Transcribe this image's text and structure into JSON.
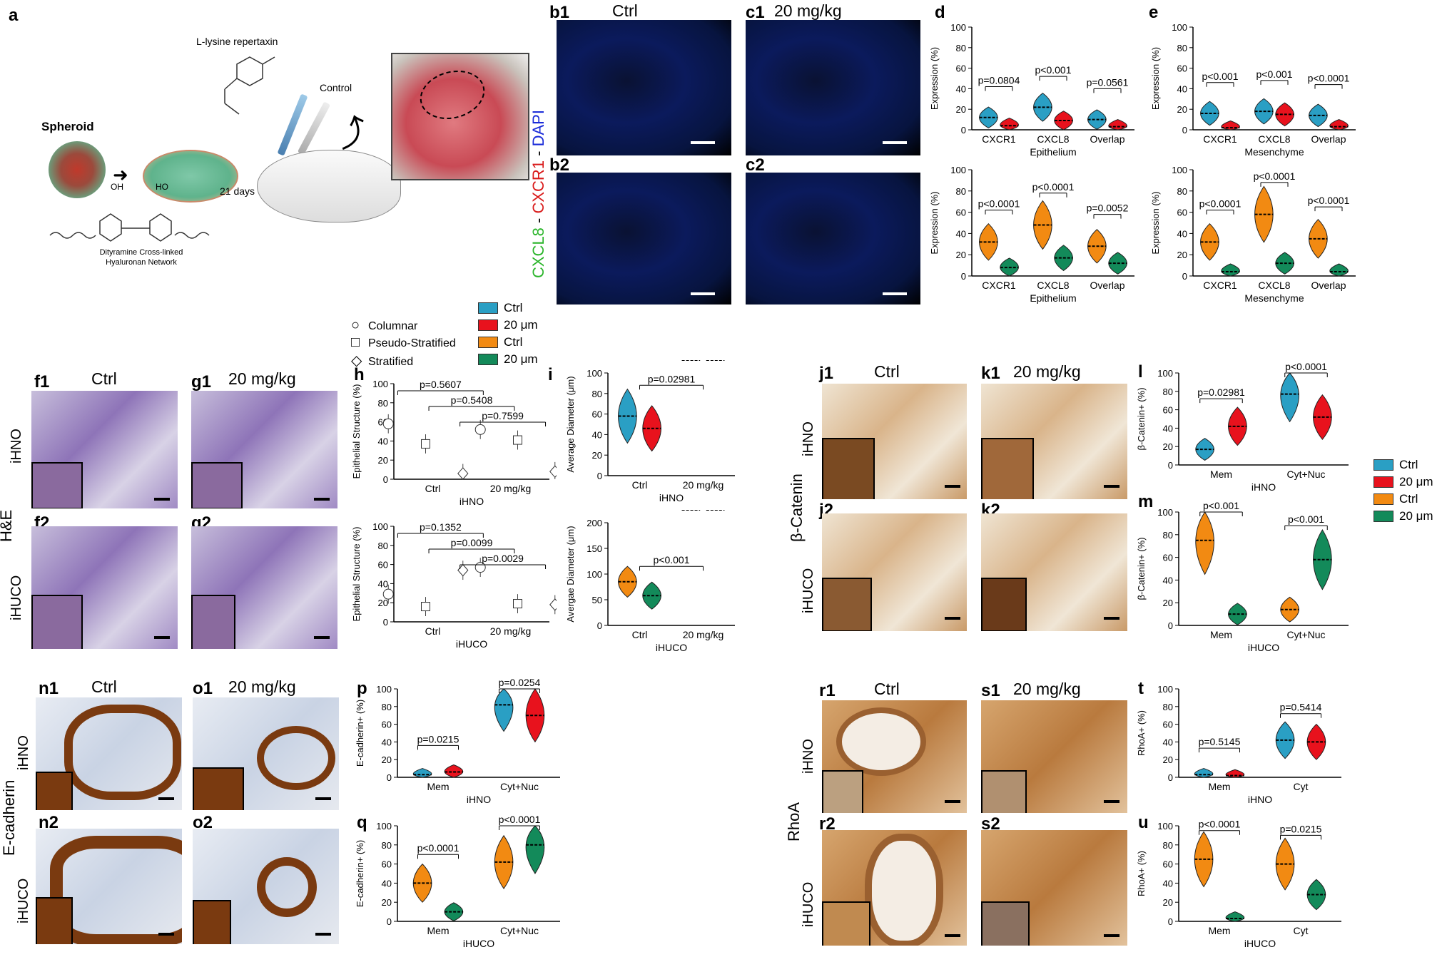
{
  "panel_labels": {
    "a": "a",
    "b1": "b1",
    "b2": "b2",
    "c1": "c1",
    "c2": "c2",
    "d": "d",
    "e": "e",
    "f1": "f1",
    "f2": "f2",
    "g1": "g1",
    "g2": "g2",
    "h": "h",
    "i": "i",
    "j1": "j1",
    "j2": "j2",
    "k1": "k1",
    "k2": "k2",
    "l": "l",
    "m": "m",
    "n1": "n1",
    "n2": "n2",
    "o1": "o1",
    "o2": "o2",
    "p": "p",
    "q": "q",
    "r1": "r1",
    "r2": "r2",
    "s1": "s1",
    "s2": "s2",
    "t": "t",
    "u": "u"
  },
  "schematic": {
    "spheroid": "Spheroid",
    "drug": "L-lysine repertaxin",
    "control": "Control",
    "days": "21 days",
    "network_line1": "Dityramine Cross-linked",
    "network_line2": "Hyaluronan Network",
    "oh1": "OH",
    "oh2": "HO"
  },
  "conditions": {
    "ctrl": "Ctrl",
    "dose": "20 mg/kg"
  },
  "row_labels": {
    "ihno": "iHNO",
    "ihuco": "iHUCO",
    "he": "H&E",
    "bcat": "β-Catenin",
    "ecad": "E-cadherin",
    "rhoa": "RhoA"
  },
  "fluor_label": {
    "cxcl8": "CXCL8",
    "dash1": " - ",
    "cxcr1": "CXCR1",
    "dash2": " - ",
    "dapi": "DAPI"
  },
  "legend_top": {
    "items": [
      {
        "label": "Ctrl",
        "color": "#2a9fc4"
      },
      {
        "label": "20 μm",
        "color": "#e8121d"
      },
      {
        "label": "Ctrl",
        "color": "#f28a12"
      },
      {
        "label": "20 μm",
        "color": "#138a5a"
      }
    ]
  },
  "legend_right": {
    "items": [
      {
        "label": "Ctrl",
        "color": "#2a9fc4"
      },
      {
        "label": "20 μm",
        "color": "#e8121d"
      },
      {
        "label": "Ctrl",
        "color": "#f28a12"
      },
      {
        "label": "20 μm",
        "color": "#138a5a"
      }
    ]
  },
  "legend_shapes": {
    "items": [
      {
        "label": "Columnar",
        "shape": "circle"
      },
      {
        "label": "Pseudo-Stratified",
        "shape": "square"
      },
      {
        "label": "Stratified",
        "shape": "diamond"
      }
    ]
  },
  "chart_data": [
    {
      "id": "d_top",
      "type": "violin",
      "ylabel": "Expression (%)",
      "xlabel": "Epithelium",
      "ylim": [
        0,
        100
      ],
      "yticks": [
        0,
        20,
        40,
        60,
        80,
        100
      ],
      "categories": [
        "CXCR1",
        "CXCL8",
        "Overlap"
      ],
      "series": [
        {
          "name": "Ctrl",
          "color": "#2a9fc4",
          "values": [
            12,
            22,
            10
          ]
        },
        {
          "name": "20 μm",
          "color": "#e8121d",
          "values": [
            4,
            9,
            3
          ]
        }
      ],
      "annotations": [
        "p=0.0804",
        "p<0.001",
        "p=0.0561"
      ]
    },
    {
      "id": "d_bot",
      "type": "violin",
      "ylabel": "Expression (%)",
      "xlabel": "Epithelium",
      "ylim": [
        0,
        100
      ],
      "yticks": [
        0,
        20,
        40,
        60,
        80,
        100
      ],
      "categories": [
        "CXCR1",
        "CXCL8",
        "Overlap"
      ],
      "series": [
        {
          "name": "Ctrl",
          "color": "#f28a12",
          "values": [
            32,
            48,
            28
          ]
        },
        {
          "name": "20 μm",
          "color": "#138a5a",
          "values": [
            8,
            17,
            12
          ]
        }
      ],
      "annotations": [
        "p<0.0001",
        "p<0.0001",
        "p=0.0052"
      ]
    },
    {
      "id": "e_top",
      "type": "violin",
      "ylabel": "Expression (%)",
      "xlabel": "Mesenchyme",
      "ylim": [
        0,
        100
      ],
      "yticks": [
        0,
        20,
        40,
        60,
        80,
        100
      ],
      "categories": [
        "CXCR1",
        "CXCL8",
        "Overlap"
      ],
      "series": [
        {
          "name": "Ctrl",
          "color": "#2a9fc4",
          "values": [
            16,
            18,
            14
          ]
        },
        {
          "name": "20 μm",
          "color": "#e8121d",
          "values": [
            2,
            15,
            3
          ]
        }
      ],
      "annotations": [
        "p<0.001",
        "p<0.001",
        "p<0.0001"
      ]
    },
    {
      "id": "e_bot",
      "type": "violin",
      "ylabel": "Expression (%)",
      "xlabel": "Mesenchyme",
      "ylim": [
        0,
        100
      ],
      "yticks": [
        0,
        20,
        40,
        60,
        80,
        100
      ],
      "categories": [
        "CXCR1",
        "CXCL8",
        "Overlap"
      ],
      "series": [
        {
          "name": "Ctrl",
          "color": "#f28a12",
          "values": [
            32,
            58,
            35
          ]
        },
        {
          "name": "20 μm",
          "color": "#138a5a",
          "values": [
            4,
            12,
            4
          ]
        }
      ],
      "annotations": [
        "p<0.0001",
        "p<0.0001",
        "p<0.0001"
      ]
    },
    {
      "id": "h_top",
      "type": "scatter",
      "ylabel": "Epithelial Structure (%)",
      "xlabel": "iHNO",
      "ylim": [
        0,
        100
      ],
      "yticks": [
        0,
        20,
        40,
        60,
        80,
        100
      ],
      "categories": [
        "Ctrl",
        "20 mg/kg"
      ],
      "series": [
        {
          "name": "Columnar",
          "values": [
            58,
            52
          ]
        },
        {
          "name": "Pseudo-Stratified",
          "values": [
            37,
            41
          ]
        },
        {
          "name": "Stratified",
          "values": [
            6,
            8
          ]
        }
      ],
      "annotations": [
        "p=0.5607",
        "p=0.5408",
        "p=0.7599"
      ]
    },
    {
      "id": "h_bot",
      "type": "scatter",
      "ylabel": "Epithelial Structure (%)",
      "xlabel": "iHUCO",
      "ylim": [
        0,
        100
      ],
      "yticks": [
        0,
        20,
        40,
        60,
        80,
        100
      ],
      "categories": [
        "Ctrl",
        "20 mg/kg"
      ],
      "series": [
        {
          "name": "Columnar",
          "values": [
            29,
            57
          ]
        },
        {
          "name": "Pseudo-Stratified",
          "values": [
            16,
            19
          ]
        },
        {
          "name": "Stratified",
          "values": [
            54,
            18
          ]
        }
      ],
      "annotations": [
        "p=0.1352",
        "p=0.0099",
        "p=0.0029"
      ]
    },
    {
      "id": "i_top",
      "type": "violin",
      "ylabel": "Average Diameter (μm)",
      "xlabel": "iHNO",
      "ylim": [
        0,
        100
      ],
      "yticks": [
        0,
        20,
        40,
        60,
        80,
        100
      ],
      "categories": [
        "Ctrl",
        "20 mg/kg"
      ],
      "series": [
        {
          "name": "Ctrl",
          "color": "#2a9fc4",
          "values": [
            58
          ]
        },
        {
          "name": "20 μm",
          "color": "#e8121d",
          "values": [
            46
          ]
        }
      ],
      "annotations": [
        "p=0.02981"
      ]
    },
    {
      "id": "i_bot",
      "type": "violin",
      "ylabel": "Avergae Diameter (μm)",
      "xlabel": "iHUCO",
      "ylim": [
        0,
        200
      ],
      "yticks": [
        0,
        50,
        100,
        150,
        200
      ],
      "categories": [
        "Ctrl",
        "20 mg/kg"
      ],
      "series": [
        {
          "name": "Ctrl",
          "color": "#f28a12",
          "values": [
            85
          ]
        },
        {
          "name": "20 μm",
          "color": "#138a5a",
          "values": [
            58
          ]
        }
      ],
      "annotations": [
        "p<0.001"
      ]
    },
    {
      "id": "l",
      "type": "violin",
      "ylabel": "β-Catenin+ (%)",
      "xlabel": "iHNO",
      "ylim": [
        0,
        100
      ],
      "yticks": [
        0,
        20,
        40,
        60,
        80,
        100
      ],
      "categories": [
        "Mem",
        "Cyt+Nuc"
      ],
      "series": [
        {
          "name": "Ctrl",
          "color": "#2a9fc4",
          "values": [
            17,
            77
          ]
        },
        {
          "name": "20 μm",
          "color": "#e8121d",
          "values": [
            42,
            52
          ]
        }
      ],
      "annotations": [
        "p=0.02981",
        "p<0.0001"
      ]
    },
    {
      "id": "m",
      "type": "violin",
      "ylabel": "β-Catenin+ (%)",
      "xlabel": "iHUCO",
      "ylim": [
        0,
        100
      ],
      "yticks": [
        0,
        20,
        40,
        60,
        80,
        100
      ],
      "categories": [
        "Mem",
        "Cyt+Nuc"
      ],
      "series": [
        {
          "name": "Ctrl",
          "color": "#f28a12",
          "values": [
            75,
            14
          ]
        },
        {
          "name": "20 μm",
          "color": "#138a5a",
          "values": [
            10,
            58
          ]
        }
      ],
      "annotations": [
        "p<0.001",
        "p<0.001"
      ]
    },
    {
      "id": "p",
      "type": "violin",
      "ylabel": "E-cadherin+ (%)",
      "xlabel": "iHNO",
      "ylim": [
        0,
        100
      ],
      "yticks": [
        0,
        20,
        40,
        60,
        80,
        100
      ],
      "categories": [
        "Mem",
        "Cyt+Nuc"
      ],
      "series": [
        {
          "name": "Ctrl",
          "color": "#2a9fc4",
          "values": [
            3,
            82
          ]
        },
        {
          "name": "20 μm",
          "color": "#e8121d",
          "values": [
            6,
            70
          ]
        }
      ],
      "annotations": [
        "p=0.0215",
        "p=0.0254"
      ]
    },
    {
      "id": "q",
      "type": "violin",
      "ylabel": "E-cadherin+ (%)",
      "xlabel": "iHUCO",
      "ylim": [
        0,
        100
      ],
      "yticks": [
        0,
        20,
        40,
        60,
        80,
        100
      ],
      "categories": [
        "Mem",
        "Cyt+Nuc"
      ],
      "series": [
        {
          "name": "Ctrl",
          "color": "#f28a12",
          "values": [
            40,
            62
          ]
        },
        {
          "name": "20 μm",
          "color": "#138a5a",
          "values": [
            10,
            80
          ]
        }
      ],
      "annotations": [
        "p<0.0001",
        "p<0.0001"
      ]
    },
    {
      "id": "t",
      "type": "violin",
      "ylabel": "RhoA+ (%)",
      "xlabel": "iHNO",
      "ylim": [
        0,
        100
      ],
      "yticks": [
        0,
        20,
        40,
        60,
        80,
        100
      ],
      "categories": [
        "Mem",
        "Cyt"
      ],
      "series": [
        {
          "name": "Ctrl",
          "color": "#2a9fc4",
          "values": [
            3,
            42
          ]
        },
        {
          "name": "20 μm",
          "color": "#e8121d",
          "values": [
            2,
            40
          ]
        }
      ],
      "annotations": [
        "p=0.5145",
        "p=0.5414"
      ]
    },
    {
      "id": "u",
      "type": "violin",
      "ylabel": "RhoA+ (%)",
      "xlabel": "iHUCO",
      "ylim": [
        0,
        100
      ],
      "yticks": [
        0,
        20,
        40,
        60,
        80,
        100
      ],
      "categories": [
        "Mem",
        "Cyt"
      ],
      "series": [
        {
          "name": "Ctrl",
          "color": "#f28a12",
          "values": [
            65,
            60
          ]
        },
        {
          "name": "20 μm",
          "color": "#138a5a",
          "values": [
            3,
            28
          ]
        }
      ],
      "annotations": [
        "p<0.0001",
        "p=0.0215"
      ]
    }
  ]
}
